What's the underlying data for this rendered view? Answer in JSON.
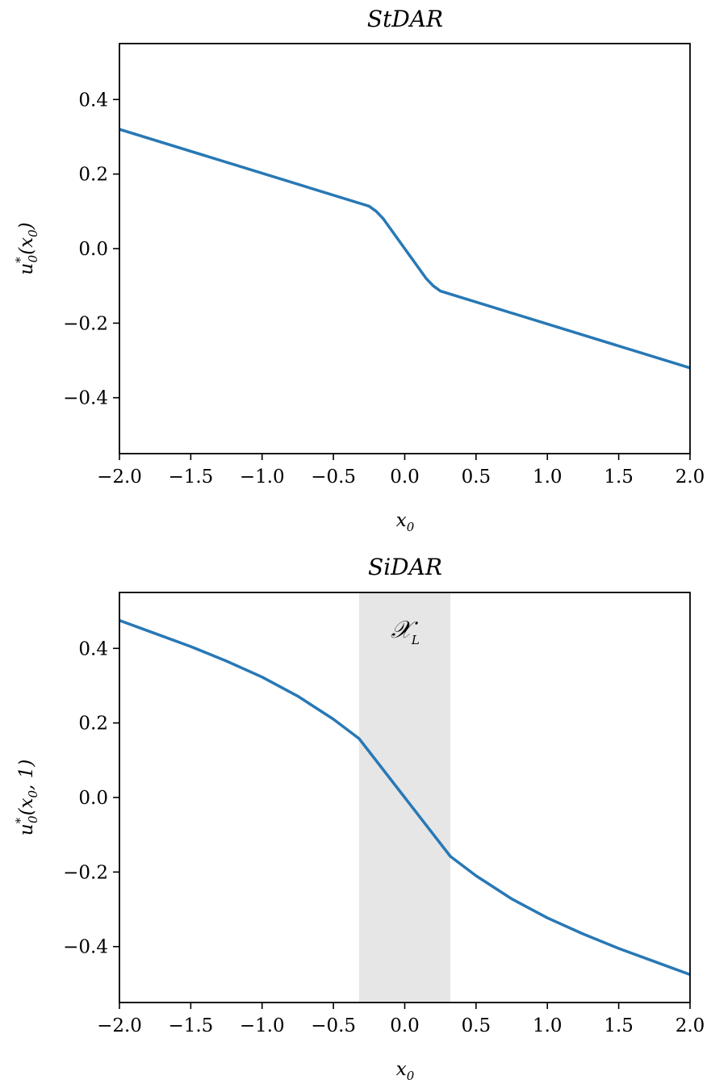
{
  "chart_data": [
    {
      "type": "line",
      "title": "StDAR",
      "xlabel": {
        "base": "x",
        "sub": "0"
      },
      "ylabel": {
        "base": "u",
        "sup": "*",
        "sub": "0",
        "args": "(x",
        "args_sub": "0",
        "args_end": ")"
      },
      "xlim": [
        -2.0,
        2.0
      ],
      "ylim": [
        -0.55,
        0.55
      ],
      "xticks": [
        -2.0,
        -1.5,
        -1.0,
        -0.5,
        0.0,
        0.5,
        1.0,
        1.5,
        2.0
      ],
      "xtick_labels": [
        "−2.0",
        "−1.5",
        "−1.0",
        "−0.5",
        "0.0",
        "0.5",
        "1.0",
        "1.5",
        "2.0"
      ],
      "yticks": [
        -0.4,
        -0.2,
        0.0,
        0.2,
        0.4
      ],
      "ytick_labels": [
        "−0.4",
        "−0.2",
        "0.0",
        "0.2",
        "0.4"
      ],
      "grid": false,
      "line_color": "#2878b5",
      "series": [
        {
          "x": [
            -2.0,
            -0.25,
            -0.2,
            -0.15,
            0.15,
            0.2,
            0.25,
            2.0
          ],
          "y": [
            0.32,
            0.114,
            0.1,
            0.08,
            -0.08,
            -0.1,
            -0.114,
            -0.32
          ]
        }
      ]
    },
    {
      "type": "line",
      "title": "SiDAR",
      "xlabel": {
        "base": "x",
        "sub": "0"
      },
      "ylabel": {
        "base": "u",
        "sup": "*",
        "sub": "0",
        "args": "(x",
        "args_sub": "0",
        "args_end": ", 1)"
      },
      "xlim": [
        -2.0,
        2.0
      ],
      "ylim": [
        -0.55,
        0.55
      ],
      "xticks": [
        -2.0,
        -1.5,
        -1.0,
        -0.5,
        0.0,
        0.5,
        1.0,
        1.5,
        2.0
      ],
      "xtick_labels": [
        "−2.0",
        "−1.5",
        "−1.0",
        "−0.5",
        "0.0",
        "0.5",
        "1.0",
        "1.5",
        "2.0"
      ],
      "yticks": [
        -0.4,
        -0.2,
        0.0,
        0.2,
        0.4
      ],
      "ytick_labels": [
        "−0.4",
        "−0.2",
        "0.0",
        "0.2",
        "0.4"
      ],
      "grid": false,
      "line_color": "#2878b5",
      "shaded_region": {
        "x": [
          -0.32,
          0.32
        ],
        "color": "#e6e6e6",
        "label": {
          "base": "𝒳",
          "sub": "L"
        }
      },
      "series": [
        {
          "x": [
            -2.0,
            -1.75,
            -1.5,
            -1.25,
            -1.0,
            -0.75,
            -0.5,
            -0.32,
            0.0,
            0.32,
            0.5,
            0.75,
            1.0,
            1.25,
            1.5,
            1.75,
            2.0
          ],
          "y": [
            0.475,
            0.44,
            0.405,
            0.366,
            0.323,
            0.272,
            0.21,
            0.158,
            0.0,
            -0.158,
            -0.21,
            -0.272,
            -0.323,
            -0.366,
            -0.405,
            -0.44,
            -0.475
          ]
        }
      ]
    }
  ]
}
